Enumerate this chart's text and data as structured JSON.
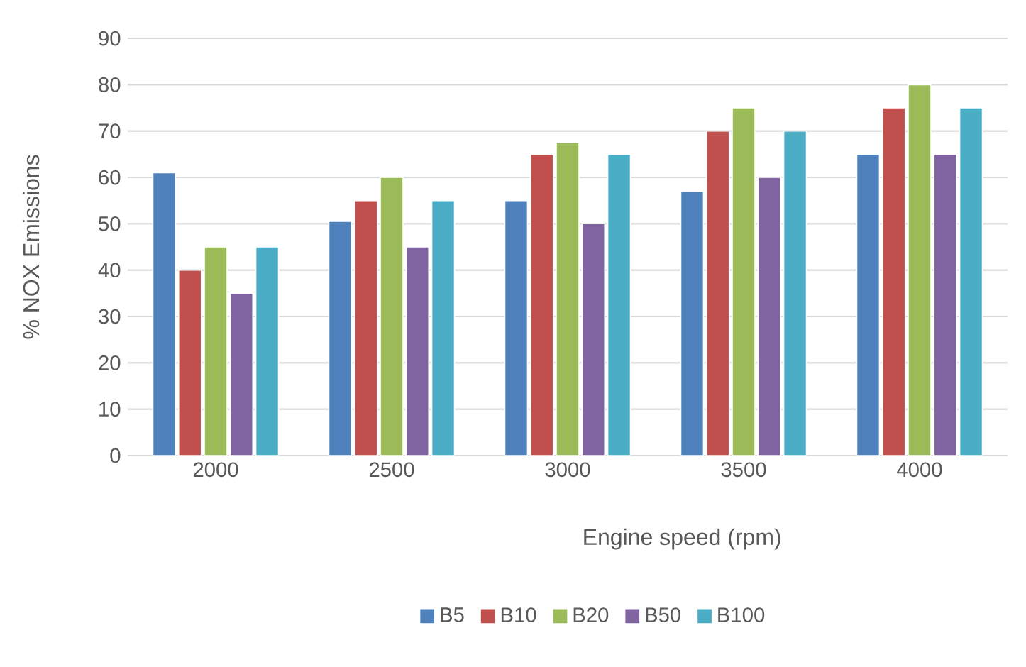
{
  "chart_data": {
    "type": "bar",
    "xlabel": "Engine speed (rpm)",
    "ylabel": "% NOX Emissions",
    "categories": [
      "2000",
      "2500",
      "3000",
      "3500",
      "4000"
    ],
    "series": [
      {
        "name": "B5",
        "color": "#4f81bd",
        "values": [
          61,
          50.5,
          55,
          57,
          65
        ]
      },
      {
        "name": "B10",
        "color": "#c0504d",
        "values": [
          40,
          55,
          65,
          70,
          75
        ]
      },
      {
        "name": "B20",
        "color": "#9bbb59",
        "values": [
          45,
          60,
          67.5,
          75,
          80
        ]
      },
      {
        "name": "B50",
        "color": "#8064a2",
        "values": [
          35,
          45,
          50,
          60,
          65
        ]
      },
      {
        "name": "B100",
        "color": "#4bacc6",
        "values": [
          45,
          55,
          65,
          70,
          75
        ]
      }
    ],
    "ylim": [
      0,
      90
    ],
    "yticks": [
      0,
      10,
      20,
      30,
      40,
      50,
      60,
      70,
      80,
      90
    ],
    "grid": "y",
    "legend": "bottom"
  }
}
